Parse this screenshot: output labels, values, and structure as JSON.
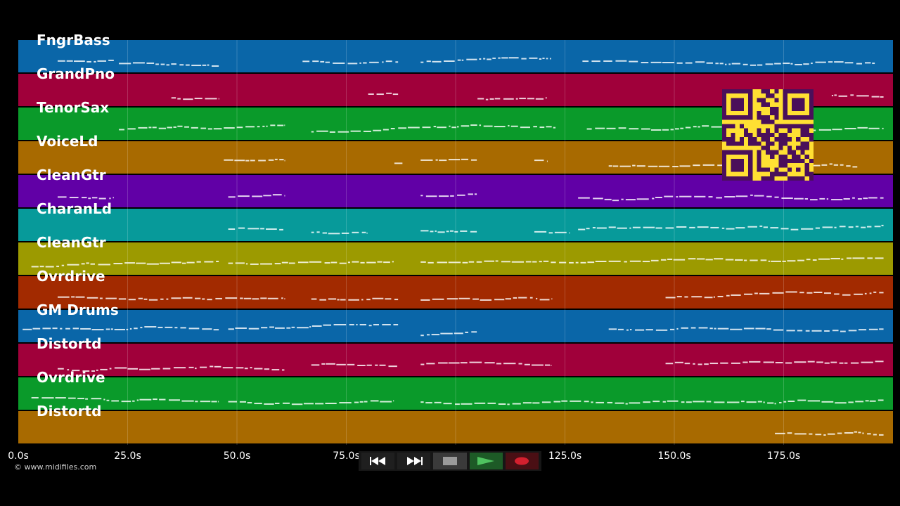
{
  "copyright": "© www.midifiles.com",
  "tracks": [
    {
      "name": "FngrBass",
      "color": "#0a66a8"
    },
    {
      "name": "GrandPno",
      "color": "#a0003a"
    },
    {
      "name": "TenorSax",
      "color": "#0a9a2a"
    },
    {
      "name": "VoiceLd",
      "color": "#a86a00"
    },
    {
      "name": "CleanGtr",
      "color": "#6100a6"
    },
    {
      "name": "CharanLd",
      "color": "#079a9a"
    },
    {
      "name": "CleanGtr",
      "color": "#9c9a00"
    },
    {
      "name": "Ovrdrive",
      "color": "#a22a00"
    },
    {
      "name": "GM Drums",
      "color": "#0a66a8"
    },
    {
      "name": "Distortd",
      "color": "#a0003a"
    },
    {
      "name": "Ovrdrive",
      "color": "#0a9a2a"
    },
    {
      "name": "Distortd",
      "color": "#a86a00"
    }
  ],
  "time_axis": {
    "max_seconds": 200,
    "ticks": [
      "0.0s",
      "25.0s",
      "50.0s",
      "75.0s",
      "100.0s",
      "125.0s",
      "150.0s",
      "175.0s"
    ]
  },
  "note_segments": [
    [
      [
        9,
        22
      ],
      [
        23,
        46
      ],
      [
        65,
        87
      ],
      [
        92,
        122
      ],
      [
        129,
        196
      ]
    ],
    [
      [
        35,
        46
      ],
      [
        80,
        87
      ],
      [
        105,
        121
      ],
      [
        186,
        198
      ]
    ],
    [
      [
        23,
        61
      ],
      [
        67,
        123
      ],
      [
        130,
        198
      ]
    ],
    [
      [
        47,
        61
      ],
      [
        86,
        88
      ],
      [
        92,
        105
      ],
      [
        118,
        121
      ],
      [
        135,
        192
      ]
    ],
    [
      [
        9,
        22
      ],
      [
        48,
        61
      ],
      [
        92,
        105
      ],
      [
        128,
        198
      ]
    ],
    [
      [
        48,
        61
      ],
      [
        67,
        80
      ],
      [
        92,
        105
      ],
      [
        118,
        126
      ],
      [
        128,
        198
      ]
    ],
    [
      [
        3,
        46
      ],
      [
        48,
        86
      ],
      [
        92,
        198
      ]
    ],
    [
      [
        9,
        61
      ],
      [
        67,
        87
      ],
      [
        92,
        122
      ],
      [
        148,
        198
      ]
    ],
    [
      [
        1,
        46
      ],
      [
        48,
        87
      ],
      [
        92,
        105
      ],
      [
        135,
        198
      ]
    ],
    [
      [
        9,
        61
      ],
      [
        67,
        87
      ],
      [
        92,
        122
      ],
      [
        148,
        198
      ]
    ],
    [
      [
        3,
        46
      ],
      [
        48,
        86
      ],
      [
        92,
        198
      ]
    ],
    [
      [
        173,
        198
      ]
    ]
  ],
  "transport": {
    "rewind": "rewind-icon",
    "fast_forward": "fast-forward-icon",
    "stop": "stop-icon",
    "play": "play-icon",
    "record": "record-icon"
  },
  "qr_code": "qr-code",
  "colors": {
    "background": "#000000",
    "qr_yellow": "#ffe033",
    "qr_dark": "#4a0f5a",
    "play_green": "#2a9a3a",
    "record_red": "#b0102a"
  }
}
